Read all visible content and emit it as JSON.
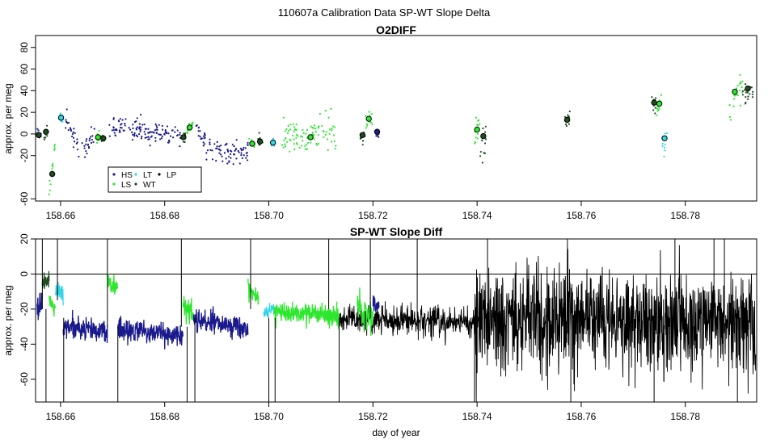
{
  "page_title": "110607a   Calibration Data SP-WT Slope Delta",
  "x_axis_label": "day of year",
  "colors": {
    "HS": "#1a1a8c",
    "LS": "#2ee62e",
    "LT": "#33d6e6",
    "WT": "#1f4d1f",
    "LP": "#000000"
  },
  "legend": {
    "placement": "bottom-left",
    "entries": [
      {
        "code": "HS",
        "label": "HS"
      },
      {
        "code": "LS",
        "label": "LS"
      },
      {
        "code": "LT",
        "label": "LT"
      },
      {
        "code": "WT",
        "label": "WT"
      },
      {
        "code": "LP",
        "label": "LP"
      }
    ]
  },
  "chart_data": [
    {
      "type": "scatter",
      "title": "O2DIFF",
      "ylabel": "approx. per meg",
      "xlim": [
        158.6552,
        158.7937
      ],
      "ylim": [
        -62,
        91
      ],
      "x_ticks": [
        158.66,
        158.68,
        158.7,
        158.72,
        158.74,
        158.76,
        158.78
      ],
      "y_ticks": [
        -60,
        -20,
        0,
        20,
        40,
        60,
        80
      ],
      "grid": false,
      "segments": [
        {
          "code": "HS",
          "x0": 158.6555,
          "x1": 158.6565,
          "ys": -1,
          "ye": -1,
          "spread": 3
        },
        {
          "code": "WT",
          "x0": 158.6568,
          "x1": 158.6575,
          "ys": 0,
          "ye": 3,
          "spread": 4
        },
        {
          "code": "LS",
          "x0": 158.6578,
          "x1": 158.659,
          "ys": -55,
          "ye": -5,
          "spread": 4
        },
        {
          "code": "LT",
          "x0": 158.6597,
          "x1": 158.6605,
          "ys": 15,
          "ye": 15,
          "spread": 2
        },
        {
          "code": "HS",
          "x0": 158.6607,
          "x1": 158.6635,
          "ys": 15,
          "ye": -10,
          "spread": 5
        },
        {
          "code": "HS",
          "x0": 158.664,
          "x1": 158.6665,
          "ys": -15,
          "ye": -5,
          "spread": 5
        },
        {
          "code": "LS",
          "x0": 158.6668,
          "x1": 158.6675,
          "ys": -4,
          "ye": -1,
          "spread": 3
        },
        {
          "code": "WT",
          "x0": 158.6677,
          "x1": 158.6685,
          "ys": -5,
          "ye": -3,
          "spread": 2
        },
        {
          "code": "HS",
          "x0": 158.669,
          "x1": 158.683,
          "ys": 6,
          "ye": 0,
          "spread": 5
        },
        {
          "code": "WT",
          "x0": 158.6833,
          "x1": 158.684,
          "ys": -4,
          "ye": -1,
          "spread": 3
        },
        {
          "code": "LS",
          "x0": 158.6842,
          "x1": 158.6855,
          "ys": 2,
          "ye": 7,
          "spread": 3
        },
        {
          "code": "HS",
          "x0": 158.6858,
          "x1": 158.688,
          "ys": 3,
          "ye": -5,
          "spread": 5
        },
        {
          "code": "HS",
          "x0": 158.688,
          "x1": 158.696,
          "ys": -18,
          "ye": -15,
          "spread": 6
        },
        {
          "code": "LS",
          "x0": 158.6962,
          "x1": 158.6975,
          "ys": -9,
          "ye": -7,
          "spread": 3
        },
        {
          "code": "WT",
          "x0": 158.6977,
          "x1": 158.699,
          "ys": -7,
          "ye": -6,
          "spread": 3
        },
        {
          "code": "LT",
          "x0": 158.7005,
          "x1": 158.7012,
          "ys": -9,
          "ye": -8,
          "spread": 2
        },
        {
          "code": "LS",
          "x0": 158.7025,
          "x1": 158.713,
          "ys": -2,
          "ye": 2,
          "spread": 8
        },
        {
          "code": "WT",
          "x0": 158.7175,
          "x1": 158.7185,
          "ys": -5,
          "ye": 0,
          "spread": 4
        },
        {
          "code": "LS",
          "x0": 158.7185,
          "x1": 158.72,
          "ys": 10,
          "ye": 15,
          "spread": 4
        },
        {
          "code": "HS",
          "x0": 158.7205,
          "x1": 158.7212,
          "ys": 2,
          "ye": 2,
          "spread": 3
        },
        {
          "code": "LS",
          "x0": 158.7395,
          "x1": 158.7405,
          "ys": -5,
          "ye": 10,
          "spread": 7
        },
        {
          "code": "WT",
          "x0": 158.7405,
          "x1": 158.742,
          "ys": -20,
          "ye": 5,
          "spread": 10
        },
        {
          "code": "WT",
          "x0": 158.7568,
          "x1": 158.7578,
          "ys": 10,
          "ye": 15,
          "spread": 4
        },
        {
          "code": "WT",
          "x0": 158.7735,
          "x1": 158.7745,
          "ys": 30,
          "ye": 28,
          "spread": 4
        },
        {
          "code": "LS",
          "x0": 158.7745,
          "x1": 158.7755,
          "ys": 22,
          "ye": 32,
          "spread": 4
        },
        {
          "code": "LT",
          "x0": 158.7755,
          "x1": 158.7765,
          "ys": -15,
          "ye": -2,
          "spread": 5
        },
        {
          "code": "LS",
          "x0": 158.7885,
          "x1": 158.791,
          "ys": 20,
          "ye": 45,
          "spread": 8
        },
        {
          "code": "WT",
          "x0": 158.791,
          "x1": 158.793,
          "ys": 35,
          "ye": 45,
          "spread": 6
        }
      ],
      "circles": [
        {
          "code": "WT",
          "x": 158.6558,
          "y": -1
        },
        {
          "code": "WT",
          "x": 158.6572,
          "y": 2
        },
        {
          "code": "WT",
          "x": 158.6584,
          "y": -37
        },
        {
          "code": "LT",
          "x": 158.6601,
          "y": 15
        },
        {
          "code": "LS",
          "x": 158.6672,
          "y": -3
        },
        {
          "code": "WT",
          "x": 158.6682,
          "y": -4
        },
        {
          "code": "WT",
          "x": 158.6836,
          "y": -3
        },
        {
          "code": "LS",
          "x": 158.6848,
          "y": 6
        },
        {
          "code": "LS",
          "x": 158.6968,
          "y": -9
        },
        {
          "code": "WT",
          "x": 158.6983,
          "y": -7
        },
        {
          "code": "LT",
          "x": 158.7008,
          "y": -8
        },
        {
          "code": "LS",
          "x": 158.708,
          "y": -3
        },
        {
          "code": "WT",
          "x": 158.718,
          "y": -1
        },
        {
          "code": "LS",
          "x": 158.7192,
          "y": 14
        },
        {
          "code": "HS",
          "x": 158.7208,
          "y": 2
        },
        {
          "code": "LS",
          "x": 158.74,
          "y": 4
        },
        {
          "code": "WT",
          "x": 158.7412,
          "y": -2
        },
        {
          "code": "WT",
          "x": 158.7573,
          "y": 13
        },
        {
          "code": "WT",
          "x": 158.774,
          "y": 29
        },
        {
          "code": "LS",
          "x": 158.775,
          "y": 28
        },
        {
          "code": "LT",
          "x": 158.776,
          "y": -4
        },
        {
          "code": "LS",
          "x": 158.7895,
          "y": 39
        },
        {
          "code": "WT",
          "x": 158.792,
          "y": 42
        }
      ]
    },
    {
      "type": "line",
      "title": "SP-WT Slope Diff",
      "ylabel": "approx. per meg",
      "xlabel": "day of year",
      "xlim": [
        158.6552,
        158.7937
      ],
      "ylim": [
        -73,
        20
      ],
      "x_ticks": [
        158.66,
        158.68,
        158.7,
        158.72,
        158.74,
        158.76,
        158.78
      ],
      "y_ticks": [
        -60,
        -40,
        -20,
        0,
        20
      ],
      "reference_line_y": 0,
      "grid": false,
      "segments": [
        {
          "code": "HS",
          "x0": 158.6555,
          "x1": 158.6565,
          "ys": -20,
          "ye": -18,
          "noise": 3
        },
        {
          "code": "WT",
          "x0": 158.6565,
          "x1": 158.6578,
          "ys": -5,
          "ye": -3,
          "noise": 2
        },
        {
          "code": "LS",
          "x0": 158.6578,
          "x1": 158.659,
          "ys": -15,
          "ye": -18,
          "noise": 3
        },
        {
          "code": "LT",
          "x0": 158.659,
          "x1": 158.6605,
          "ys": -10,
          "ye": -12,
          "noise": 3
        },
        {
          "code": "HS",
          "x0": 158.6605,
          "x1": 158.669,
          "ys": -30,
          "ye": -33,
          "noise": 3
        },
        {
          "code": "LS",
          "x0": 158.669,
          "x1": 158.671,
          "ys": -5,
          "ye": -8,
          "noise": 3
        },
        {
          "code": "HS",
          "x0": 158.671,
          "x1": 158.6835,
          "ys": -32,
          "ye": -35,
          "noise": 3
        },
        {
          "code": "LS",
          "x0": 158.6835,
          "x1": 158.6855,
          "ys": -18,
          "ye": -22,
          "noise": 3
        },
        {
          "code": "HS",
          "x0": 158.6855,
          "x1": 158.696,
          "ys": -26,
          "ye": -31,
          "noise": 3
        },
        {
          "code": "LS",
          "x0": 158.696,
          "x1": 158.698,
          "ys": -8,
          "ye": -12,
          "noise": 3
        },
        {
          "code": "LT",
          "x0": 158.699,
          "x1": 158.701,
          "ys": -22,
          "ye": -20,
          "noise": 2
        },
        {
          "code": "LS",
          "x0": 158.701,
          "x1": 158.7135,
          "ys": -21,
          "ye": -25,
          "noise": 3
        },
        {
          "code": "LS",
          "x0": 158.717,
          "x1": 158.72,
          "ys": -18,
          "ye": -26,
          "noise": 4
        },
        {
          "code": "HS",
          "x0": 158.72,
          "x1": 158.7212,
          "ys": -17,
          "ye": -20,
          "noise": 2
        },
        {
          "code": "LP",
          "x0": 158.7135,
          "x1": 158.7395,
          "ys": -25,
          "ye": -28,
          "noise": 4
        },
        {
          "code": "LP",
          "x0": 158.7395,
          "x1": 158.7935,
          "ys": -25,
          "ye": -28,
          "noise": 15
        }
      ],
      "spikes": [
        {
          "x": 158.6565,
          "y0": -20,
          "y1": 20
        },
        {
          "x": 158.6572,
          "y0": -20,
          "y1": -73
        },
        {
          "x": 158.6594,
          "y0": -15,
          "y1": 20
        },
        {
          "x": 158.6606,
          "y0": -25,
          "y1": -73
        },
        {
          "x": 158.669,
          "y0": -30,
          "y1": 20
        },
        {
          "x": 158.671,
          "y0": -30,
          "y1": -73
        },
        {
          "x": 158.6832,
          "y0": -30,
          "y1": 20
        },
        {
          "x": 158.6843,
          "y0": -30,
          "y1": -73
        },
        {
          "x": 158.6858,
          "y0": -25,
          "y1": -73
        },
        {
          "x": 158.6965,
          "y0": -20,
          "y1": 20
        },
        {
          "x": 158.7,
          "y0": -25,
          "y1": -73
        },
        {
          "x": 158.7012,
          "y0": -25,
          "y1": -73
        },
        {
          "x": 158.7115,
          "y0": -20,
          "y1": 20
        },
        {
          "x": 158.7135,
          "y0": -25,
          "y1": -73
        },
        {
          "x": 158.7195,
          "y0": -25,
          "y1": 20
        },
        {
          "x": 158.7285,
          "y0": -25,
          "y1": 20
        },
        {
          "x": 158.7395,
          "y0": -25,
          "y1": -73
        },
        {
          "x": 158.742,
          "y0": -20,
          "y1": 20
        },
        {
          "x": 158.758,
          "y0": -25,
          "y1": -73
        },
        {
          "x": 158.774,
          "y0": -20,
          "y1": -73
        },
        {
          "x": 158.778,
          "y0": -20,
          "y1": 20
        },
        {
          "x": 158.7855,
          "y0": -25,
          "y1": 20
        },
        {
          "x": 158.7875,
          "y0": -25,
          "y1": 20
        },
        {
          "x": 158.79,
          "y0": -25,
          "y1": -73
        }
      ]
    }
  ]
}
